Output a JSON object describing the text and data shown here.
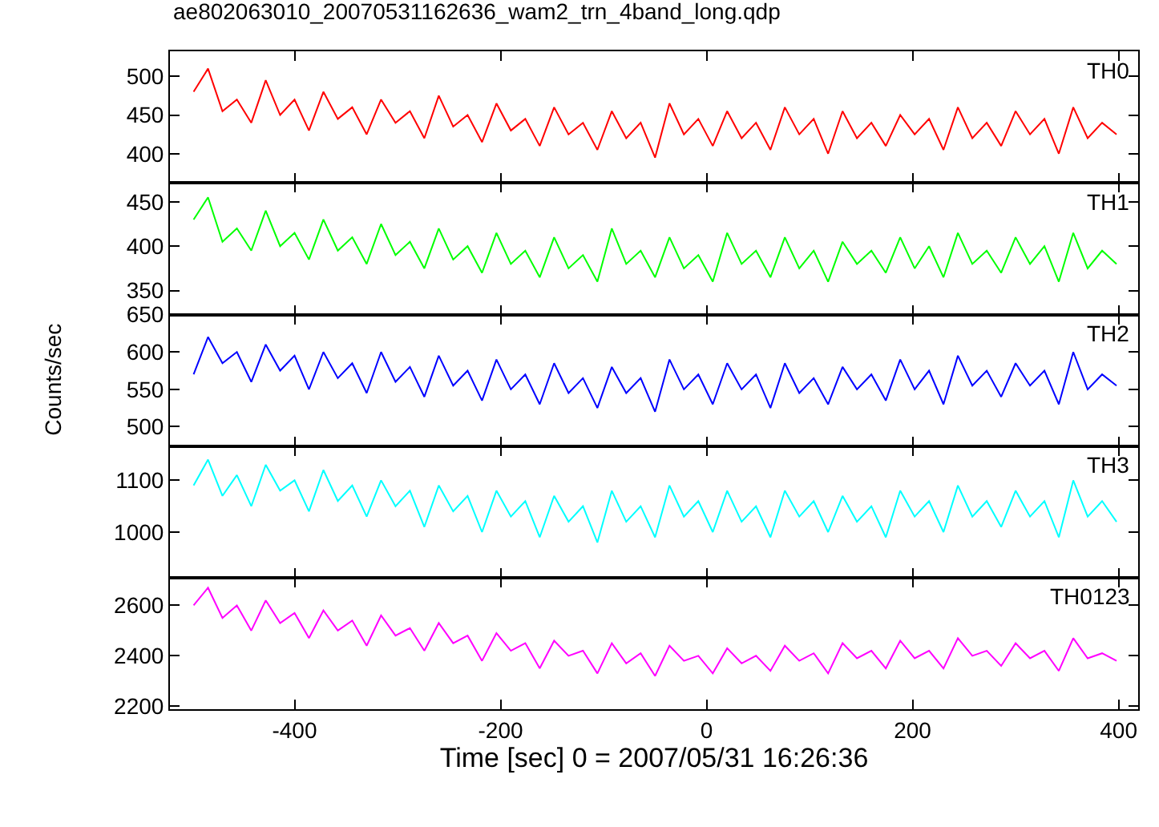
{
  "chart_data": [
    {
      "type": "line",
      "title": "ae802063010_20070531162636_wam2_trn_4band_long.qdp",
      "tick_labels": "y",
      "x": [
        -498,
        -484,
        -470,
        -456,
        -442,
        -428,
        -414,
        -400,
        -386,
        -372,
        -358,
        -344,
        -330,
        -316,
        -302,
        -288,
        -274,
        -260,
        -246,
        -232,
        -218,
        -204,
        -190,
        -176,
        -162,
        -148,
        -134,
        -120,
        -106,
        -92,
        -78,
        -64,
        -50,
        -36,
        -22,
        -8,
        6,
        20,
        34,
        48,
        62,
        76,
        90,
        104,
        118,
        132,
        146,
        160,
        174,
        188,
        202,
        216,
        230,
        244,
        258,
        272,
        286,
        300,
        314,
        328,
        342,
        356,
        370,
        384,
        398
      ],
      "series": [
        {
          "name": "TH0",
          "color": "#ff0000",
          "values": [
            480,
            510,
            455,
            470,
            440,
            495,
            450,
            470,
            430,
            480,
            445,
            460,
            425,
            470,
            440,
            455,
            420,
            475,
            435,
            450,
            415,
            465,
            430,
            445,
            410,
            460,
            425,
            440,
            405,
            455,
            420,
            440,
            395,
            465,
            425,
            445,
            410,
            455,
            420,
            440,
            405,
            460,
            425,
            445,
            400,
            455,
            420,
            440,
            410,
            450,
            425,
            445,
            405,
            460,
            420,
            440,
            410,
            455,
            425,
            445,
            400,
            460,
            420,
            440,
            425
          ]
        }
      ],
      "xlim": [
        -521,
        419
      ],
      "xticks": [
        -400,
        -200,
        0,
        200,
        400
      ],
      "ylim": [
        362,
        532
      ],
      "yticks": [
        400,
        450,
        500
      ]
    },
    {
      "type": "line",
      "tick_labels": "y",
      "x": [
        -498,
        -484,
        -470,
        -456,
        -442,
        -428,
        -414,
        -400,
        -386,
        -372,
        -358,
        -344,
        -330,
        -316,
        -302,
        -288,
        -274,
        -260,
        -246,
        -232,
        -218,
        -204,
        -190,
        -176,
        -162,
        -148,
        -134,
        -120,
        -106,
        -92,
        -78,
        -64,
        -50,
        -36,
        -22,
        -8,
        6,
        20,
        34,
        48,
        62,
        76,
        90,
        104,
        118,
        132,
        146,
        160,
        174,
        188,
        202,
        216,
        230,
        244,
        258,
        272,
        286,
        300,
        314,
        328,
        342,
        356,
        370,
        384,
        398
      ],
      "series": [
        {
          "name": "TH1",
          "color": "#00ff00",
          "values": [
            430,
            455,
            405,
            420,
            395,
            440,
            400,
            415,
            385,
            430,
            395,
            410,
            380,
            425,
            390,
            405,
            375,
            420,
            385,
            400,
            370,
            415,
            380,
            395,
            365,
            410,
            375,
            390,
            360,
            420,
            380,
            395,
            365,
            410,
            375,
            390,
            360,
            415,
            380,
            395,
            365,
            410,
            375,
            395,
            360,
            405,
            380,
            395,
            370,
            410,
            375,
            400,
            365,
            415,
            380,
            395,
            370,
            410,
            380,
            400,
            360,
            415,
            375,
            395,
            380
          ]
        }
      ],
      "xlim": [
        -521,
        419
      ],
      "xticks": [
        -400,
        -200,
        0,
        200,
        400
      ],
      "ylim": [
        323,
        471
      ],
      "yticks": [
        350,
        400,
        450
      ]
    },
    {
      "type": "line",
      "tick_labels": "y",
      "ylabel": "Counts/sec",
      "x": [
        -498,
        -484,
        -470,
        -456,
        -442,
        -428,
        -414,
        -400,
        -386,
        -372,
        -358,
        -344,
        -330,
        -316,
        -302,
        -288,
        -274,
        -260,
        -246,
        -232,
        -218,
        -204,
        -190,
        -176,
        -162,
        -148,
        -134,
        -120,
        -106,
        -92,
        -78,
        -64,
        -50,
        -36,
        -22,
        -8,
        6,
        20,
        34,
        48,
        62,
        76,
        90,
        104,
        118,
        132,
        146,
        160,
        174,
        188,
        202,
        216,
        230,
        244,
        258,
        272,
        286,
        300,
        314,
        328,
        342,
        356,
        370,
        384,
        398
      ],
      "series": [
        {
          "name": "TH2",
          "color": "#0000ff",
          "values": [
            570,
            620,
            585,
            600,
            560,
            610,
            575,
            595,
            550,
            600,
            565,
            585,
            545,
            600,
            560,
            580,
            540,
            595,
            555,
            575,
            535,
            590,
            550,
            570,
            530,
            585,
            545,
            565,
            525,
            580,
            545,
            565,
            520,
            590,
            550,
            570,
            530,
            585,
            550,
            570,
            525,
            585,
            545,
            565,
            530,
            580,
            550,
            570,
            535,
            590,
            550,
            575,
            530,
            595,
            555,
            575,
            540,
            585,
            555,
            575,
            530,
            600,
            550,
            570,
            555
          ]
        }
      ],
      "xlim": [
        -521,
        419
      ],
      "xticks": [
        -400,
        -200,
        0,
        200,
        400
      ],
      "ylim": [
        474,
        650
      ],
      "yticks": [
        500,
        550,
        600,
        650
      ]
    },
    {
      "type": "line",
      "tick_labels": "y",
      "x": [
        -498,
        -484,
        -470,
        -456,
        -442,
        -428,
        -414,
        -400,
        -386,
        -372,
        -358,
        -344,
        -330,
        -316,
        -302,
        -288,
        -274,
        -260,
        -246,
        -232,
        -218,
        -204,
        -190,
        -176,
        -162,
        -148,
        -134,
        -120,
        -106,
        -92,
        -78,
        -64,
        -50,
        -36,
        -22,
        -8,
        6,
        20,
        34,
        48,
        62,
        76,
        90,
        104,
        118,
        132,
        146,
        160,
        174,
        188,
        202,
        216,
        230,
        244,
        258,
        272,
        286,
        300,
        314,
        328,
        342,
        356,
        370,
        384,
        398
      ],
      "series": [
        {
          "name": "TH3",
          "color": "#00ffff",
          "values": [
            1090,
            1140,
            1070,
            1110,
            1050,
            1130,
            1080,
            1100,
            1040,
            1120,
            1060,
            1090,
            1030,
            1100,
            1050,
            1080,
            1010,
            1090,
            1040,
            1070,
            1000,
            1080,
            1030,
            1060,
            990,
            1070,
            1020,
            1050,
            980,
            1080,
            1020,
            1050,
            990,
            1090,
            1030,
            1060,
            1000,
            1080,
            1020,
            1050,
            990,
            1080,
            1030,
            1060,
            1000,
            1070,
            1020,
            1050,
            990,
            1080,
            1030,
            1060,
            1000,
            1090,
            1030,
            1060,
            1010,
            1080,
            1030,
            1060,
            990,
            1100,
            1030,
            1060,
            1020
          ]
        }
      ],
      "xlim": [
        -521,
        419
      ],
      "xticks": [
        -400,
        -200,
        0,
        200,
        400
      ],
      "ylim": [
        912,
        1166
      ],
      "yticks": [
        1000,
        1100
      ]
    },
    {
      "type": "line",
      "xlabel": "Time [sec] 0 = 2007/05/31 16:26:36",
      "x": [
        -498,
        -484,
        -470,
        -456,
        -442,
        -428,
        -414,
        -400,
        -386,
        -372,
        -358,
        -344,
        -330,
        -316,
        -302,
        -288,
        -274,
        -260,
        -246,
        -232,
        -218,
        -204,
        -190,
        -176,
        -162,
        -148,
        -134,
        -120,
        -106,
        -92,
        -78,
        -64,
        -50,
        -36,
        -22,
        -8,
        6,
        20,
        34,
        48,
        62,
        76,
        90,
        104,
        118,
        132,
        146,
        160,
        174,
        188,
        202,
        216,
        230,
        244,
        258,
        272,
        286,
        300,
        314,
        328,
        342,
        356,
        370,
        384,
        398
      ],
      "series": [
        {
          "name": "TH0123",
          "color": "#ff00ff",
          "values": [
            2600,
            2670,
            2550,
            2600,
            2500,
            2620,
            2530,
            2570,
            2470,
            2580,
            2500,
            2540,
            2440,
            2560,
            2480,
            2510,
            2420,
            2530,
            2450,
            2480,
            2380,
            2490,
            2420,
            2450,
            2350,
            2460,
            2400,
            2420,
            2330,
            2450,
            2370,
            2410,
            2320,
            2440,
            2380,
            2400,
            2330,
            2430,
            2370,
            2400,
            2340,
            2440,
            2380,
            2410,
            2330,
            2450,
            2390,
            2420,
            2350,
            2460,
            2390,
            2420,
            2350,
            2470,
            2400,
            2420,
            2360,
            2450,
            2390,
            2420,
            2340,
            2470,
            2390,
            2410,
            2380
          ]
        }
      ],
      "xlim": [
        -521,
        419
      ],
      "xticks": [
        -400,
        -200,
        0,
        200,
        400
      ],
      "ylim": [
        2188,
        2710
      ],
      "yticks": [
        2200,
        2400,
        2600
      ]
    }
  ]
}
